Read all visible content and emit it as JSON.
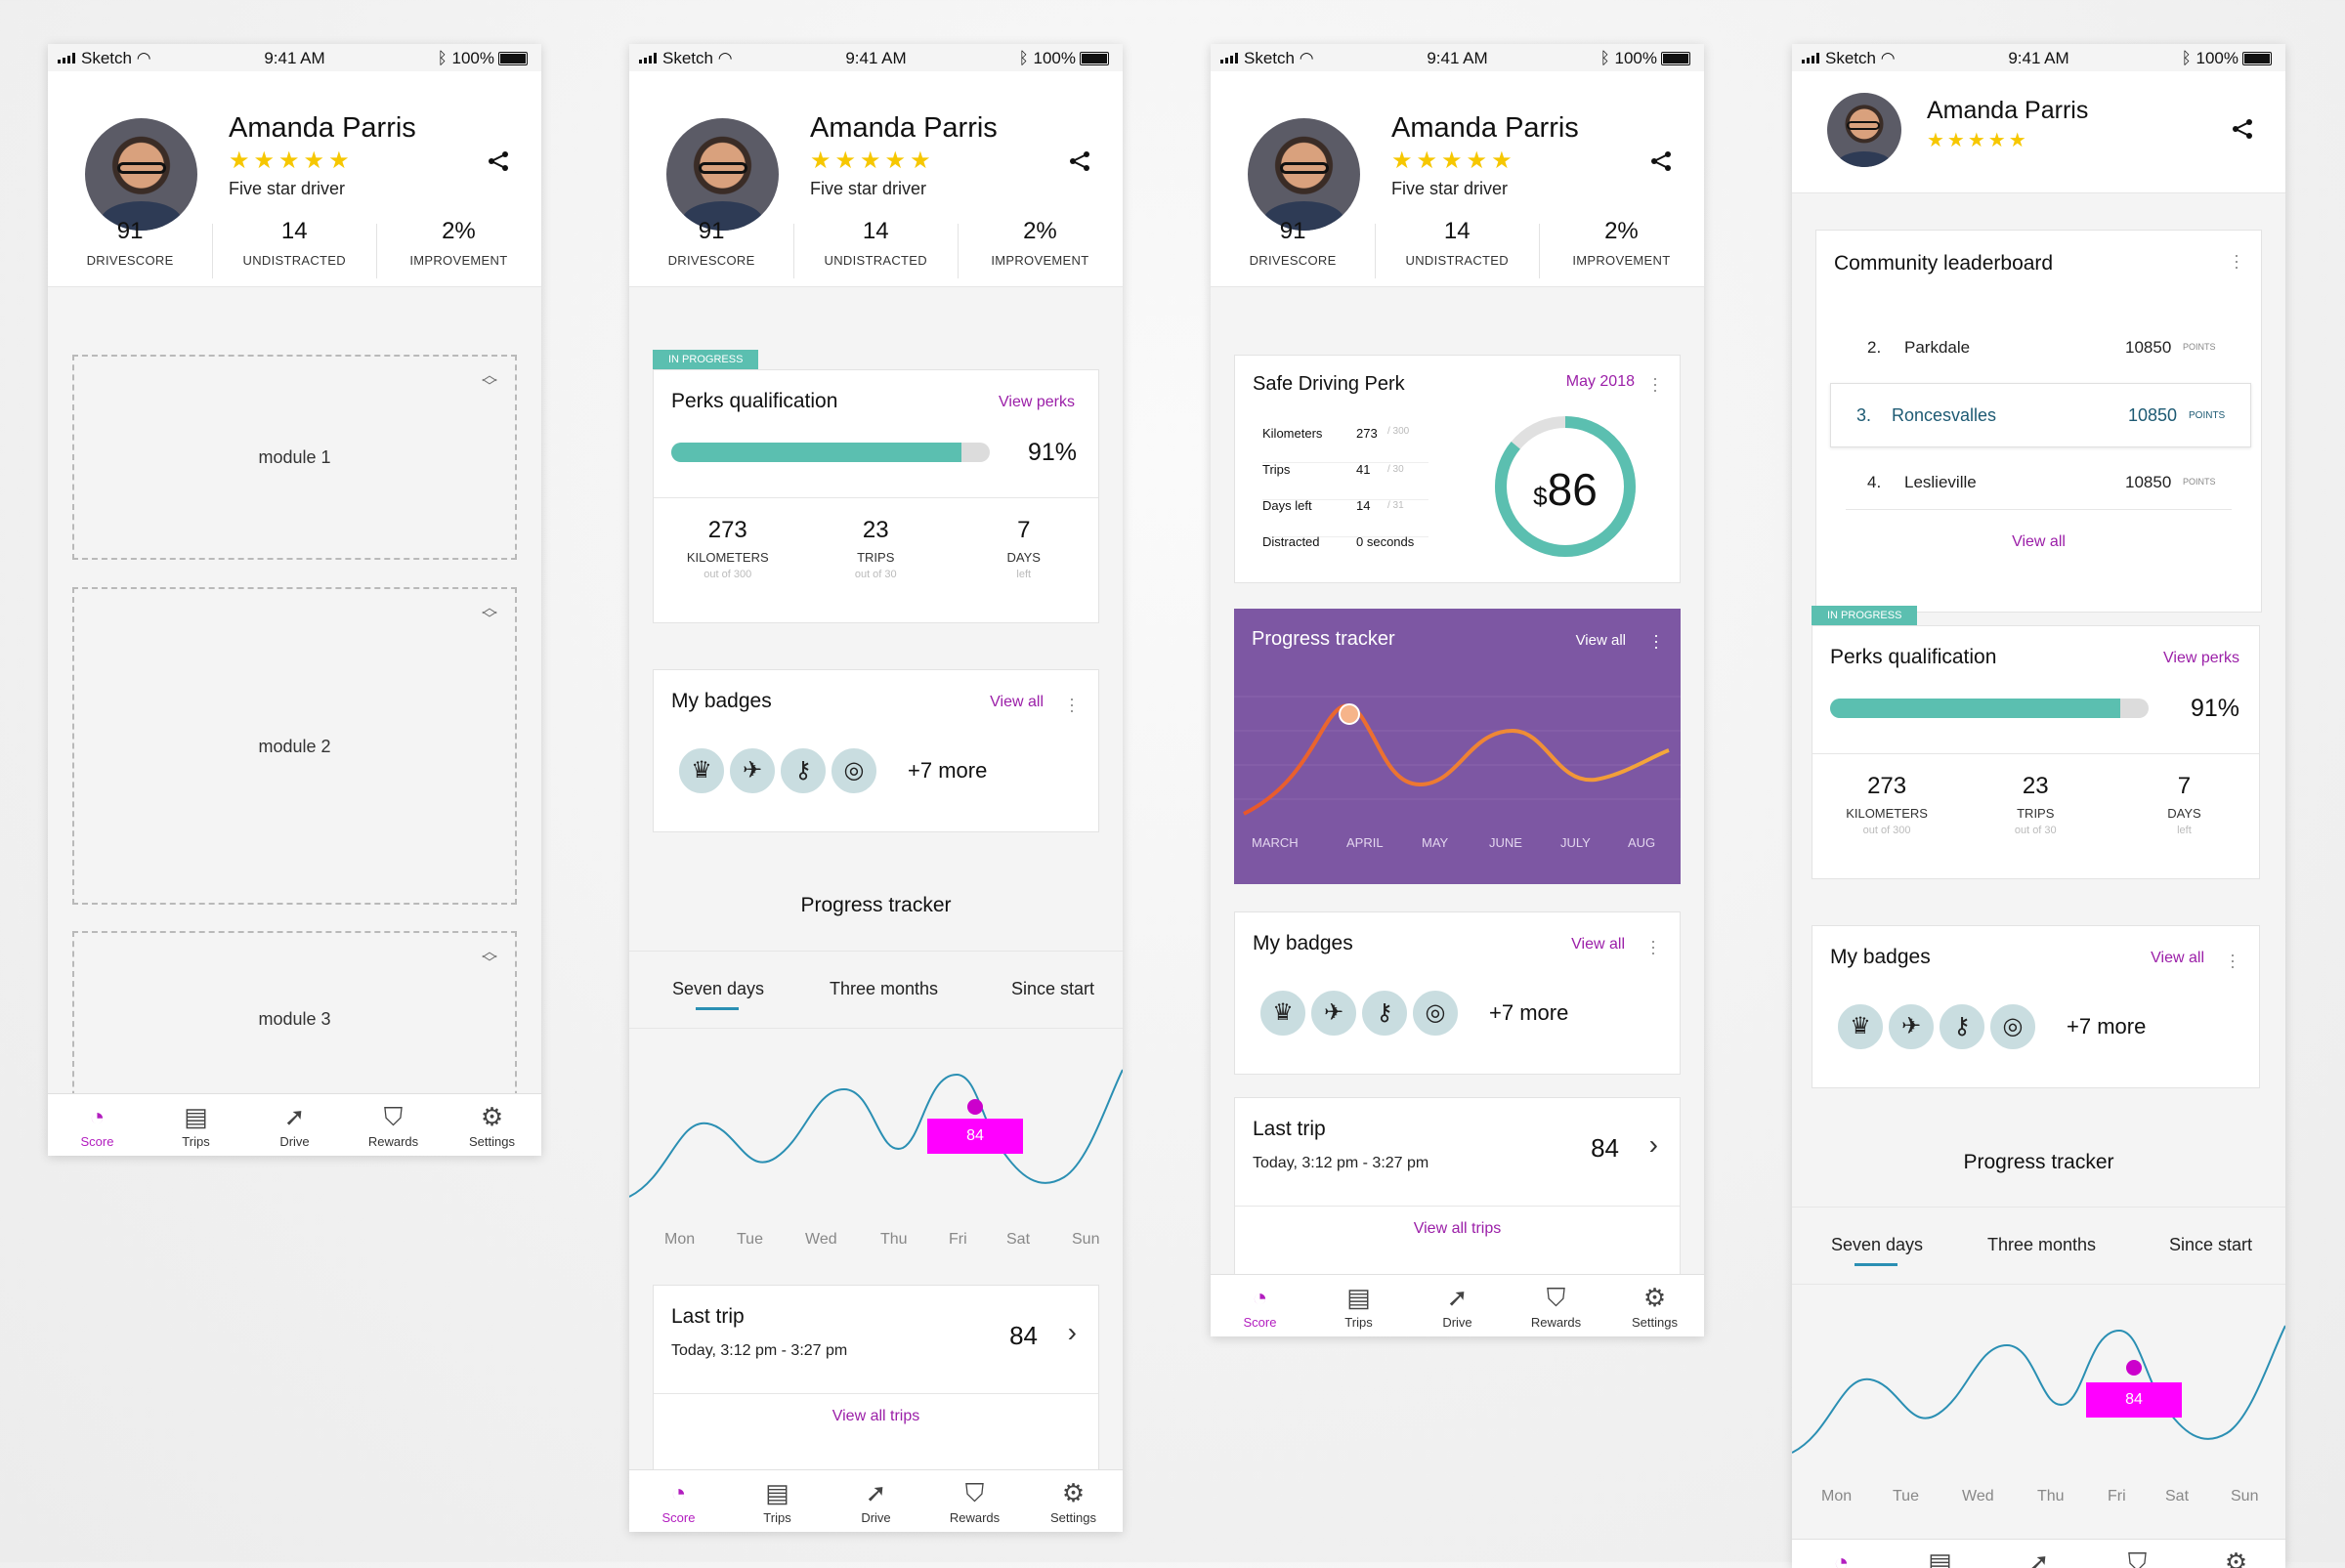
{
  "status": {
    "carrier": "Sketch",
    "time": "9:41 AM",
    "battery": "100%"
  },
  "profile": {
    "name": "Amanda Parris",
    "stars": "★★★★★",
    "subtitle": "Five star driver"
  },
  "stats": [
    {
      "value": "91",
      "label": "DRIVESCORE"
    },
    {
      "value": "14",
      "label": "UNDISTRACTED"
    },
    {
      "value": "2%",
      "label": "IMPROVEMENT"
    }
  ],
  "modules": [
    "module 1",
    "module 2",
    "module 3"
  ],
  "nav": [
    {
      "label": "Score",
      "icon": "speedometer-icon",
      "glyph": "◔"
    },
    {
      "label": "Trips",
      "icon": "document-icon",
      "glyph": "▤"
    },
    {
      "label": "Drive",
      "icon": "navigation-icon",
      "glyph": "➚"
    },
    {
      "label": "Rewards",
      "icon": "shield-star-icon",
      "glyph": "⛉"
    },
    {
      "label": "Settings",
      "icon": "gear-icon",
      "glyph": "⚙"
    }
  ],
  "perks": {
    "tag": "IN PROGRESS",
    "title": "Perks qualification",
    "link": "View perks",
    "percent_text": "91%",
    "progress": 0.91,
    "items": [
      {
        "value": "273",
        "label": "KILOMETERS",
        "sub": "out of 300"
      },
      {
        "value": "23",
        "label": "TRIPS",
        "sub": "out of 30"
      },
      {
        "value": "7",
        "label": "DAYS",
        "sub": "left"
      }
    ]
  },
  "badges": {
    "title": "My badges",
    "link": "View all",
    "more": "+7 more",
    "icons": [
      {
        "name": "crown-badge-icon",
        "glyph": "♛"
      },
      {
        "name": "winged-car-badge-icon",
        "glyph": "✈"
      },
      {
        "name": "key-badge-icon",
        "glyph": "⚷"
      },
      {
        "name": "target-badge-icon",
        "glyph": "◎"
      }
    ]
  },
  "tracker": {
    "title": "Progress tracker",
    "tabs": [
      "Seven days",
      "Three months",
      "Since start"
    ],
    "days": [
      "Mon",
      "Tue",
      "Wed",
      "Thu",
      "Fri",
      "Sat",
      "Sun"
    ],
    "highlight": "84"
  },
  "last_trip": {
    "title": "Last trip",
    "time": "Today, 3:12 pm - 3:27 pm",
    "score": "84",
    "link": "View all trips"
  },
  "safe_perk": {
    "title": "Safe Driving Perk",
    "date": "May 2018",
    "rows": [
      {
        "label": "Kilometers",
        "value": "273",
        "of": "/ 300"
      },
      {
        "label": "Trips",
        "value": "41",
        "of": "/ 30"
      },
      {
        "label": "Days left",
        "value": "14",
        "of": "/ 31"
      },
      {
        "label": "Distracted",
        "value": "0 seconds",
        "of": ""
      }
    ],
    "amount_symbol": "$",
    "amount": "86",
    "gauge": 0.86
  },
  "purple_tracker": {
    "title": "Progress tracker",
    "link": "View all",
    "months": [
      "MARCH",
      "APRIL",
      "MAY",
      "JUNE",
      "JULY",
      "AUG"
    ]
  },
  "leaderboard": {
    "title": "Community leaderboard",
    "rows": [
      {
        "rank": "2.",
        "name": "Parkdale",
        "points": "10850",
        "unit": "POINTS"
      },
      {
        "rank": "3.",
        "name": "Roncesvalles",
        "points": "10850",
        "unit": "POINTS"
      },
      {
        "rank": "4.",
        "name": "Leslieville",
        "points": "10850",
        "unit": "POINTS"
      }
    ],
    "link": "View all"
  },
  "colors": {
    "accent": "#b21dbf",
    "teal": "#5bbfb0",
    "magenta": "#ff00ff",
    "purple": "#7d57a3",
    "link": "#9b1fa8"
  }
}
